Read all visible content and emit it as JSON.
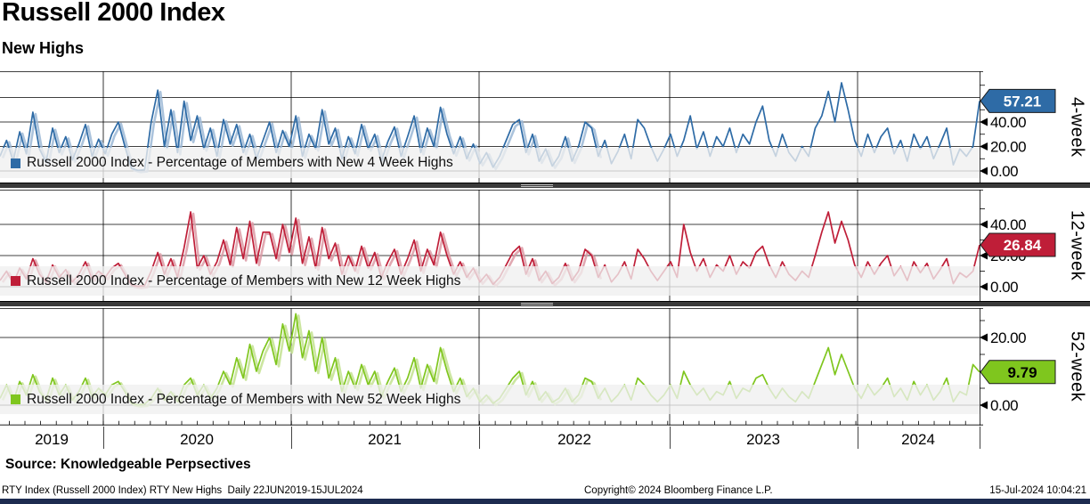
{
  "header": {
    "title": "Russell 2000 Index",
    "subtitle": "New Highs"
  },
  "source_line": "Source: Knowledgeable Perpsectives",
  "footer": {
    "left": "RTY Index (Russell 2000 Index) RTY New Highs  Daily 22JUN2019-15JUL2024",
    "center": "Copyright© 2024 Bloomberg Finance L.P.",
    "right": "15-Jul-2024 10:04:21"
  },
  "chart_data": {
    "type": "line",
    "title": "Russell 2000 Index",
    "subtitle": "New Highs",
    "x_axis": {
      "start_label": "22JUN2019",
      "end_label": "15JUL2024",
      "year_labels": [
        "2019",
        "2020",
        "2021",
        "2022",
        "2023",
        "2024"
      ]
    },
    "grid": true,
    "legend_position": "inside-bottom-left",
    "series": [
      {
        "name": "Russell 2000 Index - Percentage of Members with New 4 Week Highs",
        "axis_label": "4-week",
        "color": "#2e6ba6",
        "color_light": "#9cb9d6",
        "badge_text_color": "#ffffff",
        "last_value": 57.21,
        "yticks": [
          0,
          20,
          40
        ],
        "ylim": [
          0,
          80
        ],
        "values": [
          12,
          25,
          8,
          32,
          14,
          48,
          18,
          7,
          35,
          15,
          28,
          9,
          22,
          38,
          12,
          26,
          14,
          30,
          40,
          20,
          2,
          0.5,
          1,
          40,
          66,
          20,
          50,
          15,
          57,
          25,
          45,
          18,
          35,
          12,
          42,
          22,
          38,
          15,
          30,
          10,
          25,
          40,
          15,
          33,
          20,
          45,
          12,
          30,
          18,
          50,
          22,
          35,
          10,
          28,
          14,
          38,
          18,
          30,
          8,
          24,
          36,
          12,
          28,
          45,
          15,
          35,
          20,
          52,
          30,
          14,
          28,
          10,
          22,
          6,
          15,
          3,
          12,
          25,
          38,
          42,
          15,
          30,
          8,
          18,
          4,
          12,
          28,
          8,
          20,
          40,
          35,
          12,
          25,
          6,
          16,
          30,
          10,
          42,
          35,
          20,
          8,
          18,
          30,
          12,
          25,
          45,
          18,
          32,
          12,
          28,
          20,
          35,
          15,
          30,
          22,
          40,
          53,
          25,
          12,
          30,
          15,
          8,
          20,
          12,
          35,
          45,
          65,
          40,
          72,
          50,
          25,
          12,
          30,
          15,
          28,
          35,
          14,
          25,
          8,
          30,
          18,
          28,
          10,
          22,
          35,
          5,
          18,
          12,
          20,
          57.21
        ]
      },
      {
        "name": "Russell 2000 Index - Percentage of Members with New 12 Week Highs",
        "axis_label": "12-week",
        "color": "#bf1e38",
        "color_light": "#dc9aa4",
        "badge_text_color": "#ffffff",
        "last_value": 26.84,
        "yticks": [
          0,
          20,
          40
        ],
        "ylim": [
          0,
          62
        ],
        "values": [
          4,
          10,
          2,
          12,
          5,
          18,
          8,
          3,
          14,
          6,
          11,
          3,
          8,
          16,
          5,
          10,
          6,
          12,
          15,
          8,
          1,
          0.3,
          0.8,
          10,
          22,
          8,
          18,
          6,
          25,
          48,
          12,
          20,
          8,
          16,
          30,
          14,
          38,
          18,
          42,
          15,
          35,
          35,
          18,
          40,
          22,
          44,
          15,
          32,
          12,
          38,
          18,
          28,
          8,
          20,
          10,
          26,
          12,
          22,
          6,
          16,
          24,
          8,
          18,
          30,
          10,
          24,
          14,
          35,
          20,
          8,
          16,
          6,
          12,
          3,
          8,
          1.5,
          6,
          14,
          22,
          26,
          8,
          18,
          4,
          10,
          2,
          6,
          15,
          4,
          10,
          24,
          20,
          6,
          14,
          3,
          8,
          16,
          5,
          24,
          18,
          10,
          4,
          10,
          16,
          6,
          40,
          22,
          10,
          18,
          6,
          14,
          10,
          20,
          8,
          16,
          12,
          22,
          26,
          14,
          6,
          16,
          8,
          4,
          10,
          6,
          20,
          35,
          48,
          28,
          42,
          30,
          14,
          6,
          16,
          8,
          15,
          20,
          7,
          13,
          4,
          16,
          9,
          15,
          5,
          11,
          18,
          2,
          9,
          6,
          10,
          26.84
        ]
      },
      {
        "name": "Russell 2000 Index - Percentage of Members with New 52 Week Highs",
        "axis_label": "52-week",
        "color": "#7fc61e",
        "color_light": "#c3e290",
        "badge_text_color": "#000000",
        "last_value": 9.79,
        "yticks": [
          0,
          20
        ],
        "ylim": [
          0,
          29
        ],
        "values": [
          2,
          6,
          1,
          7,
          3,
          9,
          4,
          1.5,
          8,
          3,
          6,
          1.5,
          4,
          8,
          2.5,
          5,
          3,
          6,
          7,
          4,
          0.5,
          0.1,
          0.3,
          2,
          5,
          1.5,
          4,
          1,
          6,
          8,
          3,
          6,
          2,
          5,
          10,
          6,
          14,
          8,
          18,
          10,
          16,
          20,
          12,
          24,
          16,
          27,
          14,
          22,
          10,
          20,
          8,
          14,
          4,
          10,
          5,
          12,
          6,
          10,
          2.5,
          7,
          11,
          4,
          8,
          14,
          5,
          12,
          7,
          17,
          10,
          4,
          8,
          2.5,
          5,
          1,
          3,
          0.5,
          2,
          5,
          8,
          10,
          3,
          7,
          1.5,
          4,
          0.8,
          2,
          5,
          1,
          3,
          8,
          7,
          2,
          5,
          1,
          3,
          6,
          1.5,
          8,
          6,
          3,
          1,
          3,
          6,
          2,
          10,
          6,
          3,
          5,
          1.5,
          4,
          3,
          7,
          2,
          5,
          4,
          8,
          9,
          5,
          2,
          5,
          2.5,
          1,
          4,
          2,
          7,
          12,
          17,
          9,
          15,
          10,
          5,
          2,
          6,
          3,
          5,
          8,
          2.5,
          5,
          1.5,
          7,
          3,
          6,
          1.5,
          4,
          8,
          1,
          4,
          3,
          12,
          9.79
        ]
      }
    ]
  }
}
